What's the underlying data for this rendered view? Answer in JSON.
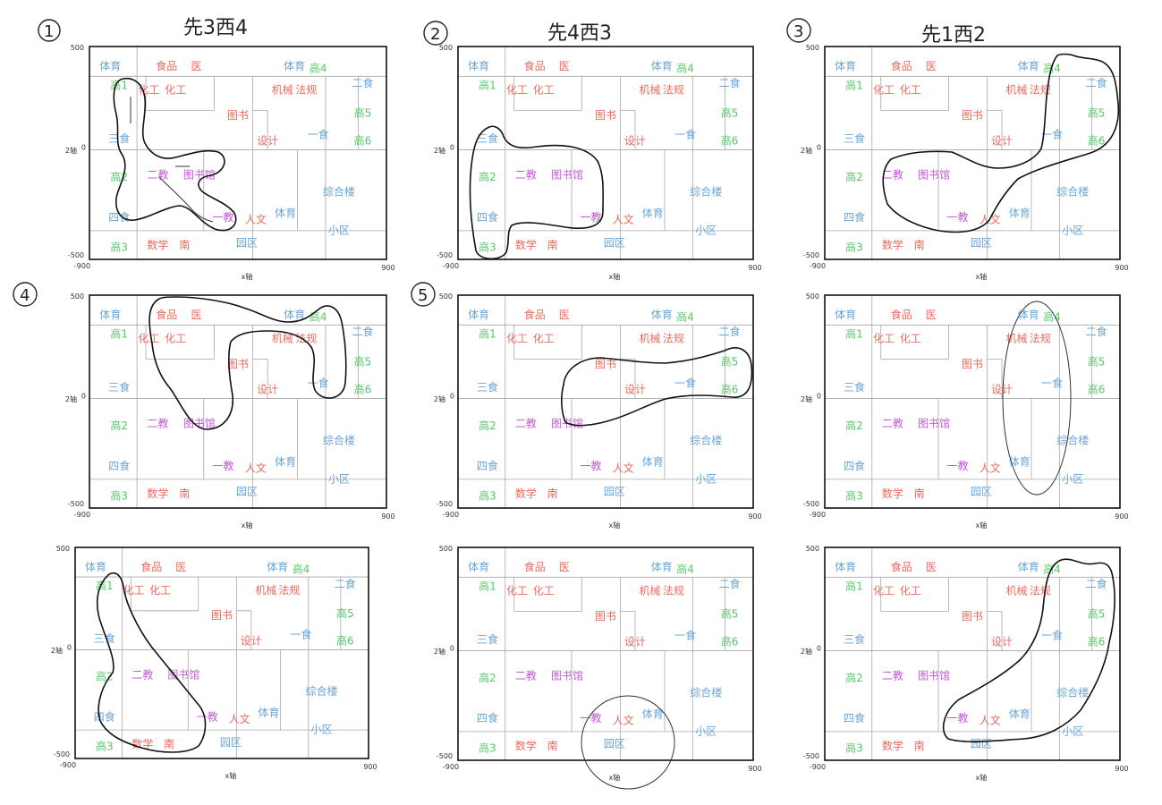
{
  "headings": [
    "先3西4",
    "先4西3",
    "先1西2"
  ],
  "numbers": [
    "1",
    "2",
    "3",
    "4",
    "5"
  ],
  "axis": {
    "xlabel": "x轴",
    "ylabel": "2轴",
    "xmin": "-900",
    "xmax": "900",
    "ytop": "500",
    "ymid": "0",
    "ybottom": "-500"
  },
  "rooms": [
    {
      "text": "体育",
      "color": "#6aa6d8"
    },
    {
      "text": "食品",
      "color": "#ec6a5e"
    },
    {
      "text": "医",
      "color": "#ec6a5e"
    },
    {
      "text": "体育",
      "color": "#6aa6d8"
    },
    {
      "text": "高4",
      "color": "#56c86a"
    },
    {
      "text": "高1",
      "color": "#56c86a"
    },
    {
      "text": "化工",
      "color": "#ec6a5e"
    },
    {
      "text": "化工",
      "color": "#ec6a5e"
    },
    {
      "text": "机械",
      "color": "#ec6a5e"
    },
    {
      "text": "法规",
      "color": "#ec6a5e"
    },
    {
      "text": "二食",
      "color": "#6aa6d8"
    },
    {
      "text": "高5",
      "color": "#56c86a"
    },
    {
      "text": "三食",
      "color": "#6aa6d8"
    },
    {
      "text": "图书",
      "color": "#ec6a5e"
    },
    {
      "text": "设计",
      "color": "#ec6a5e"
    },
    {
      "text": "一食",
      "color": "#6aa6d8"
    },
    {
      "text": "高6",
      "color": "#56c86a"
    },
    {
      "text": "高2",
      "color": "#56c86a"
    },
    {
      "text": "二教",
      "color": "#c45ad6"
    },
    {
      "text": "图书馆",
      "color": "#c45ad6"
    },
    {
      "text": "综合楼",
      "color": "#6aa6d8"
    },
    {
      "text": "四食",
      "color": "#6aa6d8"
    },
    {
      "text": "一教",
      "color": "#c45ad6"
    },
    {
      "text": "人文",
      "color": "#ec6a5e"
    },
    {
      "text": "体育",
      "color": "#6aa6d8"
    },
    {
      "text": "小区",
      "color": "#6aa6d8"
    },
    {
      "text": "高3",
      "color": "#56c86a"
    },
    {
      "text": "数学",
      "color": "#ec6a5e"
    },
    {
      "text": "南",
      "color": "#ec6a5e"
    },
    {
      "text": "园区",
      "color": "#6aa6d8"
    }
  ],
  "colors": {
    "ink": "#111111",
    "grid": "#a8a8a8"
  }
}
